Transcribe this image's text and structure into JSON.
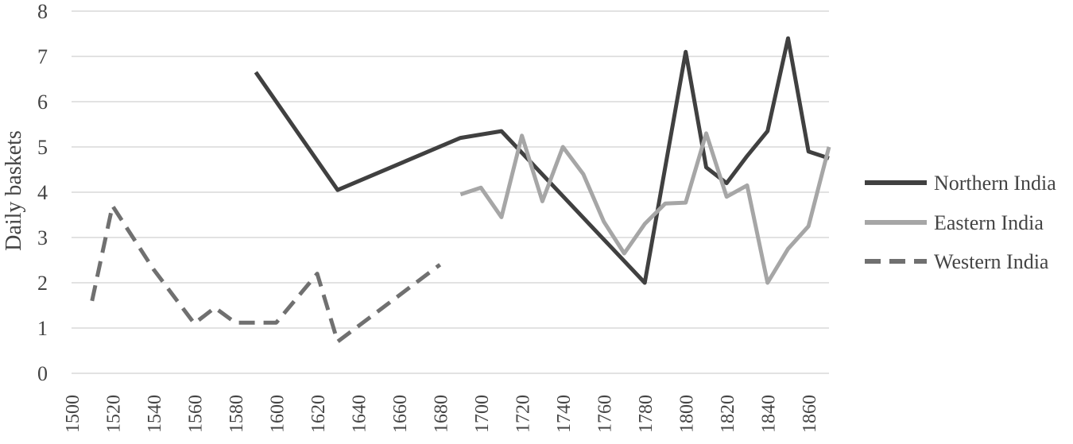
{
  "chart_data": {
    "type": "line",
    "title": "",
    "xlabel": "",
    "ylabel": "Daily baskets",
    "ylim": [
      0,
      8
    ],
    "xlim": [
      1500,
      1870
    ],
    "yticks": [
      0,
      1,
      2,
      3,
      4,
      5,
      6,
      7,
      8
    ],
    "xticks": [
      1500,
      1520,
      1540,
      1560,
      1580,
      1600,
      1620,
      1640,
      1660,
      1680,
      1700,
      1720,
      1740,
      1760,
      1780,
      1800,
      1820,
      1840,
      1860
    ],
    "grid": "horizontal",
    "legend_position": "right",
    "series": [
      {
        "name": "Northern India",
        "color": "#404040",
        "style": "solid",
        "x": [
          1590,
          1630,
          1690,
          1710,
          1780,
          1800,
          1810,
          1820,
          1830,
          1840,
          1850,
          1860,
          1870
        ],
        "y": [
          6.65,
          4.05,
          5.2,
          5.35,
          2.0,
          7.1,
          4.55,
          4.2,
          4.8,
          5.35,
          7.4,
          4.9,
          4.75
        ]
      },
      {
        "name": "Eastern India",
        "color": "#a6a6a6",
        "style": "solid",
        "x": [
          1690,
          1700,
          1710,
          1720,
          1730,
          1740,
          1750,
          1760,
          1770,
          1780,
          1790,
          1800,
          1810,
          1820,
          1830,
          1840,
          1850,
          1860,
          1870
        ],
        "y": [
          3.95,
          4.1,
          3.45,
          5.25,
          3.8,
          5.0,
          4.4,
          3.35,
          2.65,
          3.3,
          3.75,
          3.77,
          5.3,
          3.9,
          4.15,
          2.0,
          2.75,
          3.25,
          5.0
        ]
      },
      {
        "name": "Western India",
        "color": "#707070",
        "style": "dashed",
        "x": [
          1510,
          1520,
          1540,
          1560,
          1570,
          1580,
          1590,
          1600,
          1620,
          1630,
          1680
        ],
        "y": [
          1.6,
          3.7,
          2.3,
          1.1,
          1.45,
          1.12,
          1.12,
          1.12,
          2.2,
          0.7,
          2.4
        ]
      }
    ]
  }
}
